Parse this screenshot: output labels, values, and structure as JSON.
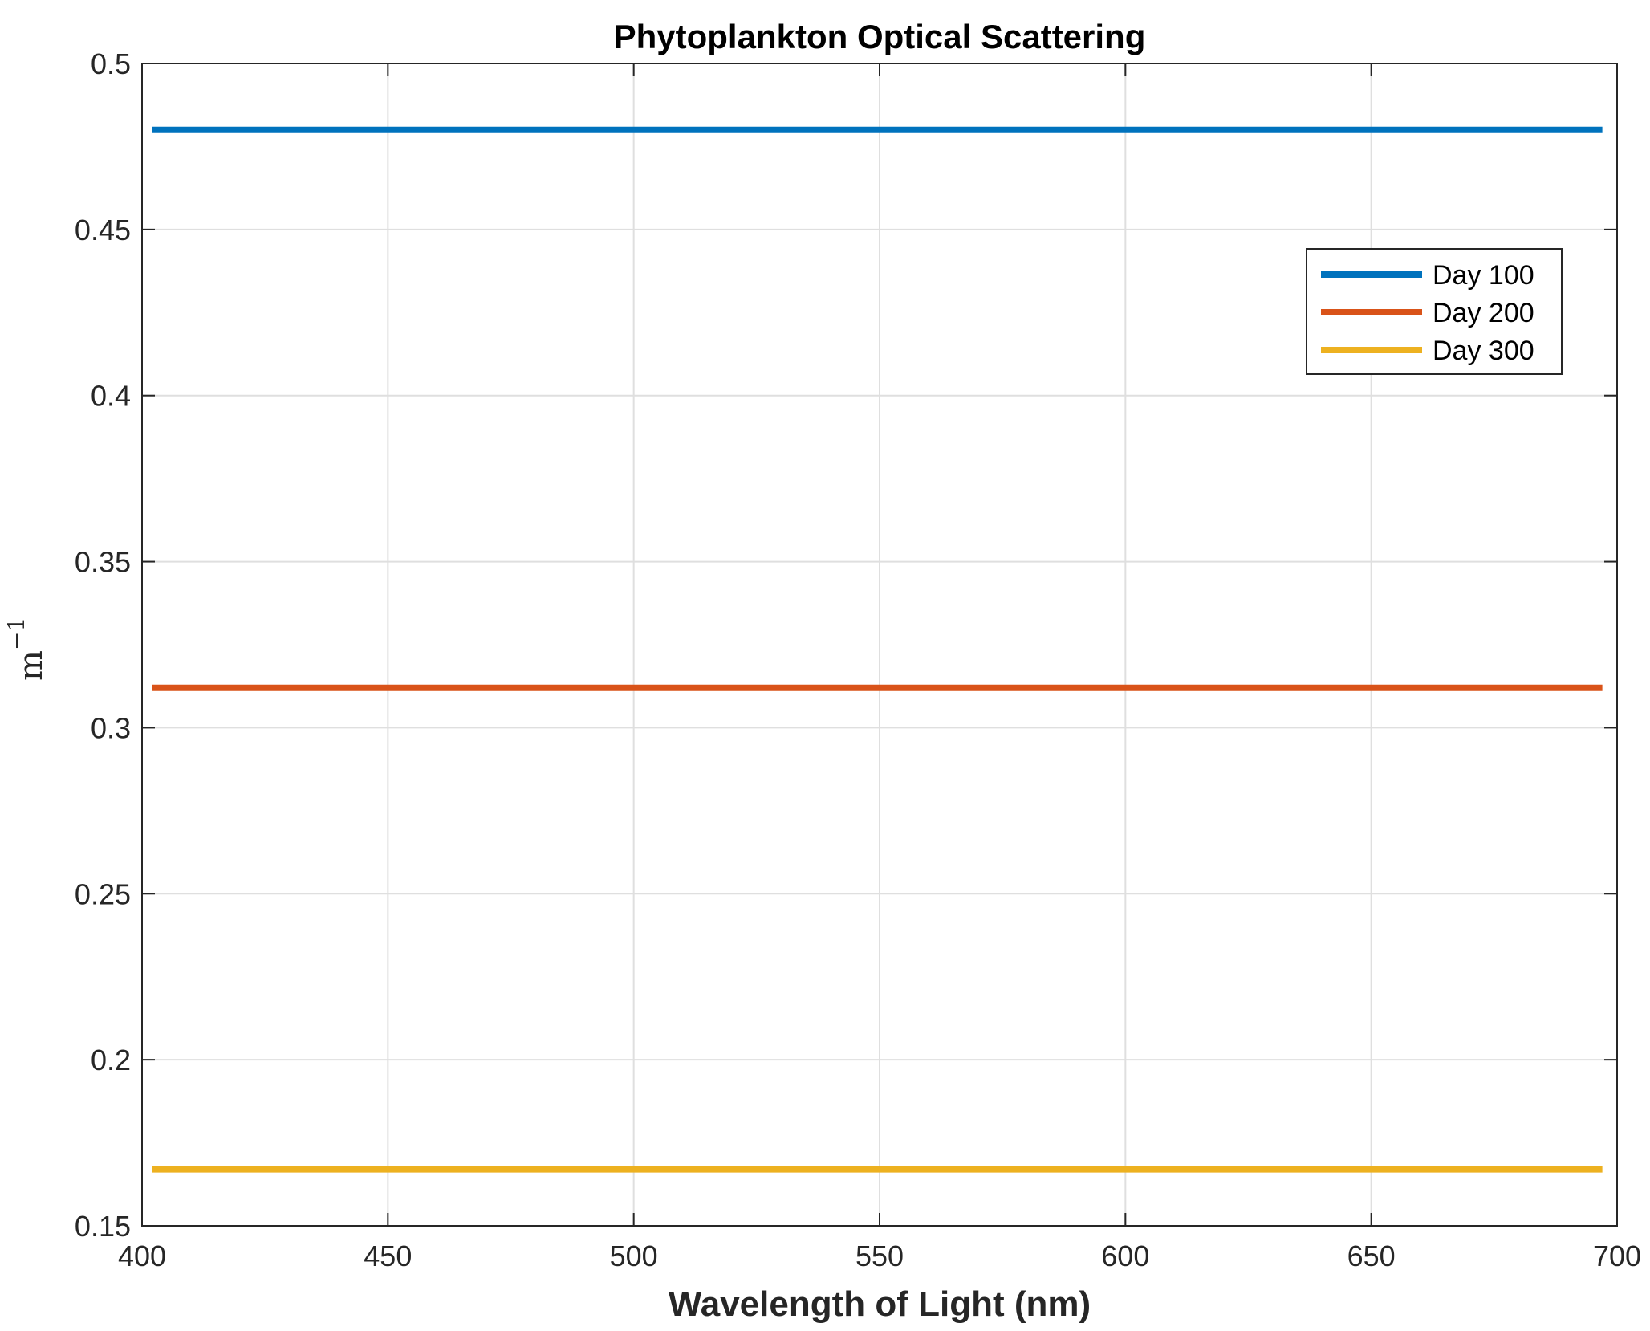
{
  "chart_data": {
    "type": "line",
    "title": "Phytoplankton Optical Scattering",
    "xlabel": "Wavelength of Light (nm)",
    "ylabel": "m",
    "ylabel_exponent": "−1",
    "xlim": [
      400,
      700
    ],
    "ylim": [
      0.15,
      0.5
    ],
    "x_ticks": [
      400,
      450,
      500,
      550,
      600,
      650,
      700
    ],
    "x_tick_labels": [
      "400",
      "450",
      "500",
      "550",
      "600",
      "650",
      "700"
    ],
    "y_ticks": [
      0.15,
      0.2,
      0.25,
      0.3,
      0.35,
      0.4,
      0.45,
      0.5
    ],
    "y_tick_labels": [
      "0.15",
      "0.2",
      "0.25",
      "0.3",
      "0.35",
      "0.4",
      "0.45",
      "0.5"
    ],
    "grid": true,
    "legend_position": "top-right",
    "series": [
      {
        "name": "Day 100",
        "color": "#0072BD",
        "x": [
          402,
          697
        ],
        "y": [
          0.48,
          0.48
        ]
      },
      {
        "name": "Day 200",
        "color": "#D95319",
        "x": [
          402,
          697
        ],
        "y": [
          0.312,
          0.312
        ]
      },
      {
        "name": "Day 300",
        "color": "#EDB120",
        "x": [
          402,
          697
        ],
        "y": [
          0.167,
          0.167
        ]
      }
    ]
  }
}
